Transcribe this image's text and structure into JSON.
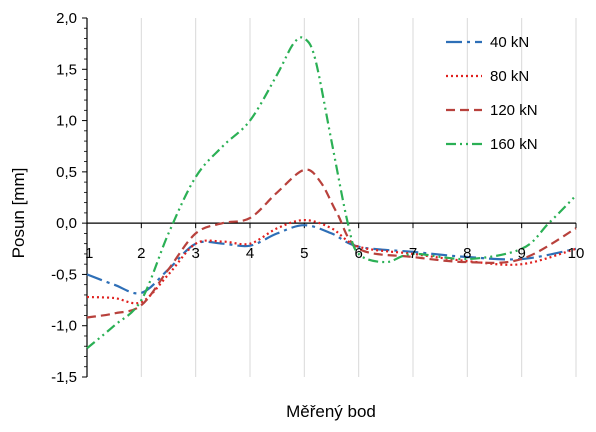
{
  "chart_data": {
    "type": "line",
    "xlabel": "Měřený bod",
    "ylabel": "Posun [mm]",
    "xlim": [
      1,
      10
    ],
    "ylim": [
      -1.5,
      2.0
    ],
    "x_ticks": [
      1,
      2,
      3,
      4,
      5,
      6,
      7,
      8,
      9,
      10
    ],
    "y_ticks": [
      -1.5,
      -1.0,
      -0.5,
      0.0,
      0.5,
      1.0,
      1.5,
      2.0
    ],
    "y_tick_labels": [
      "-1,5",
      "-1,0",
      "-0,5",
      "0,0",
      "0,5",
      "1,0",
      "1,5",
      "2,0"
    ],
    "grid": "vertical",
    "legend_position": "top-right",
    "series": [
      {
        "name": "40 kN",
        "color": "#2e6fb7",
        "dash": "long-dash-dot",
        "x": [
          1,
          1.5,
          2,
          2.5,
          3,
          3.5,
          4,
          4.5,
          5,
          5.5,
          6,
          7,
          8,
          9,
          10
        ],
        "y": [
          -0.5,
          -0.6,
          -0.68,
          -0.45,
          -0.2,
          -0.2,
          -0.22,
          -0.1,
          -0.02,
          -0.1,
          -0.23,
          -0.28,
          -0.33,
          -0.35,
          -0.25
        ]
      },
      {
        "name": "80 kN",
        "color": "#e0201e",
        "dash": "dotted",
        "x": [
          1,
          1.5,
          2,
          2.5,
          3,
          3.5,
          4,
          4.5,
          5,
          5.5,
          6,
          7,
          8,
          9,
          10
        ],
        "y": [
          -0.72,
          -0.73,
          -0.77,
          -0.5,
          -0.2,
          -0.18,
          -0.2,
          -0.05,
          0.03,
          -0.05,
          -0.23,
          -0.3,
          -0.37,
          -0.4,
          -0.25
        ]
      },
      {
        "name": "120 kN",
        "color": "#b8413c",
        "dash": "dashed",
        "x": [
          1,
          1.5,
          2,
          2.5,
          3,
          3.5,
          4,
          4.5,
          5,
          5.3,
          5.6,
          6,
          7,
          8,
          9,
          10
        ],
        "y": [
          -0.92,
          -0.88,
          -0.8,
          -0.45,
          -0.1,
          0.0,
          0.05,
          0.3,
          0.52,
          0.4,
          0.1,
          -0.25,
          -0.33,
          -0.38,
          -0.35,
          -0.05
        ]
      },
      {
        "name": "160 kN",
        "color": "#2bb055",
        "dash": "dash-dot-dot",
        "x": [
          1,
          1.5,
          2,
          2.5,
          3,
          3.5,
          4,
          4.5,
          4.8,
          5,
          5.2,
          5.5,
          5.8,
          6,
          6.5,
          7,
          8,
          9,
          9.5,
          10
        ],
        "y": [
          -1.22,
          -1.0,
          -0.75,
          -0.1,
          0.45,
          0.75,
          1.0,
          1.45,
          1.75,
          1.8,
          1.6,
          0.8,
          0.0,
          -0.3,
          -0.38,
          -0.3,
          -0.35,
          -0.25,
          0.0,
          0.27
        ]
      }
    ]
  }
}
